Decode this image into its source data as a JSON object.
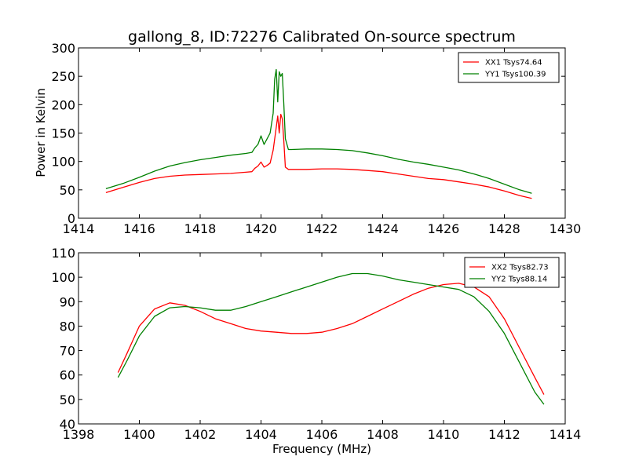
{
  "chart_data": [
    {
      "type": "line",
      "title": "gallong_8, ID:72276 Calibrated On-source spectrum",
      "xlabel": "",
      "ylabel": "Power in Kelvin",
      "xlim": [
        1414,
        1430
      ],
      "ylim": [
        0,
        300
      ],
      "xticks": [
        1414,
        1416,
        1418,
        1420,
        1422,
        1424,
        1426,
        1428,
        1430
      ],
      "yticks": [
        0,
        50,
        100,
        150,
        200,
        250,
        300
      ],
      "legend_position": "top-right",
      "series": [
        {
          "name": "XX1 Tsys74.64",
          "color": "#ff0000",
          "x": [
            1414.9,
            1415.5,
            1416.0,
            1416.5,
            1417.0,
            1417.5,
            1418.0,
            1418.5,
            1419.0,
            1419.5,
            1419.7,
            1419.8,
            1419.9,
            1420.0,
            1420.1,
            1420.2,
            1420.3,
            1420.4,
            1420.5,
            1420.55,
            1420.6,
            1420.65,
            1420.7,
            1420.75,
            1420.8,
            1420.9,
            1421.0,
            1421.5,
            1422.0,
            1422.5,
            1423.0,
            1423.5,
            1424.0,
            1424.5,
            1425.0,
            1425.5,
            1426.0,
            1426.5,
            1427.0,
            1427.5,
            1428.0,
            1428.5,
            1428.9
          ],
          "values": [
            45,
            55,
            63,
            70,
            74,
            76,
            77,
            78,
            79,
            81,
            82,
            88,
            92,
            99,
            90,
            93,
            97,
            120,
            160,
            180,
            150,
            183,
            175,
            135,
            90,
            86,
            86,
            86,
            87,
            87,
            86,
            84,
            82,
            78,
            74,
            70,
            68,
            64,
            60,
            55,
            48,
            40,
            35
          ]
        },
        {
          "name": "YY1 Tsys100.39",
          "color": "#008000",
          "x": [
            1414.9,
            1415.5,
            1416.0,
            1416.5,
            1417.0,
            1417.5,
            1418.0,
            1418.5,
            1419.0,
            1419.5,
            1419.7,
            1419.8,
            1419.9,
            1420.0,
            1420.1,
            1420.2,
            1420.3,
            1420.4,
            1420.45,
            1420.5,
            1420.55,
            1420.6,
            1420.65,
            1420.7,
            1420.75,
            1420.8,
            1420.9,
            1421.0,
            1421.5,
            1422.0,
            1422.5,
            1423.0,
            1423.5,
            1424.0,
            1424.5,
            1425.0,
            1425.5,
            1426.0,
            1426.5,
            1427.0,
            1427.5,
            1428.0,
            1428.5,
            1428.9
          ],
          "values": [
            52,
            62,
            72,
            83,
            92,
            98,
            103,
            107,
            111,
            114,
            116,
            124,
            130,
            145,
            130,
            140,
            150,
            185,
            245,
            262,
            205,
            258,
            250,
            255,
            200,
            140,
            121,
            121,
            122,
            122,
            121,
            119,
            115,
            110,
            104,
            99,
            95,
            90,
            85,
            78,
            70,
            60,
            50,
            44
          ]
        }
      ]
    },
    {
      "type": "line",
      "title": "",
      "xlabel": "Frequency (MHz)",
      "ylabel": "",
      "xlim": [
        1398,
        1414
      ],
      "ylim": [
        40,
        110
      ],
      "xticks": [
        1398,
        1400,
        1402,
        1404,
        1406,
        1408,
        1410,
        1412,
        1414
      ],
      "yticks": [
        40,
        50,
        60,
        70,
        80,
        90,
        100,
        110
      ],
      "legend_position": "top-right",
      "series": [
        {
          "name": "XX2 Tsys82.73",
          "color": "#ff0000",
          "x": [
            1399.3,
            1399.6,
            1400.0,
            1400.5,
            1401.0,
            1401.5,
            1402.0,
            1402.5,
            1403.0,
            1403.5,
            1404.0,
            1404.5,
            1405.0,
            1405.5,
            1406.0,
            1406.5,
            1407.0,
            1407.5,
            1408.0,
            1408.5,
            1409.0,
            1409.5,
            1410.0,
            1410.5,
            1411.0,
            1411.5,
            1412.0,
            1412.5,
            1413.0,
            1413.3
          ],
          "values": [
            61,
            69,
            80,
            87,
            89.5,
            88.5,
            86,
            83,
            81,
            79,
            78,
            77.5,
            77,
            77,
            77.5,
            79,
            81,
            84,
            87,
            90,
            93,
            95.5,
            97,
            97.5,
            96,
            92,
            83,
            71,
            59,
            52
          ]
        },
        {
          "name": "YY2 Tsys88.14",
          "color": "#008000",
          "x": [
            1399.3,
            1399.6,
            1400.0,
            1400.5,
            1401.0,
            1401.5,
            1402.0,
            1402.5,
            1403.0,
            1403.5,
            1404.0,
            1404.5,
            1405.0,
            1405.5,
            1406.0,
            1406.5,
            1407.0,
            1407.5,
            1408.0,
            1408.5,
            1409.0,
            1409.5,
            1410.0,
            1410.5,
            1411.0,
            1411.5,
            1412.0,
            1412.5,
            1413.0,
            1413.3
          ],
          "values": [
            59,
            66,
            76,
            84,
            87.5,
            88,
            87.5,
            86.5,
            86.5,
            88,
            90,
            92,
            94,
            96,
            98,
            100,
            101.5,
            101.5,
            100.5,
            99,
            98,
            97,
            96,
            95,
            92,
            86,
            77,
            65,
            53,
            48
          ]
        }
      ]
    }
  ]
}
